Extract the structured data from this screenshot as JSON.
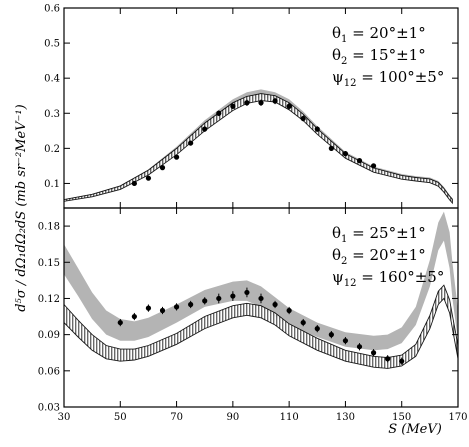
{
  "chart_data": [
    {
      "type": "line",
      "panel": "upper",
      "xlabel": "S (MeV)",
      "ylabel": "d⁵σ / dΩ₁dΩ₂dS  (mb sr⁻²MeV⁻¹)",
      "xlim": [
        30,
        170
      ],
      "ylim": [
        0.03,
        0.6
      ],
      "yticks": [
        0.1,
        0.2,
        0.3,
        0.4,
        0.5,
        0.6
      ],
      "ytick_labels": [
        "0.1",
        "0.2",
        "0.3",
        "0.4",
        "0.5",
        "0.6"
      ],
      "annotation": [
        {
          "sym": "θ",
          "sub": "1",
          "text": " = 20°±1°"
        },
        {
          "sym": "θ",
          "sub": "2",
          "text": " = 15°±1°"
        },
        {
          "sym": "ψ",
          "sub": "12",
          "text": " = 100°±5°"
        }
      ],
      "series": [
        {
          "style": "shaded band (grey)",
          "color": "#b4b4b4",
          "x": [
            30,
            40,
            50,
            60,
            70,
            80,
            90,
            95,
            100,
            105,
            110,
            115,
            120,
            130,
            140,
            150,
            155,
            160,
            163,
            165,
            167,
            168
          ],
          "lower": [
            0.05,
            0.063,
            0.084,
            0.125,
            0.185,
            0.255,
            0.315,
            0.335,
            0.345,
            0.34,
            0.318,
            0.285,
            0.245,
            0.175,
            0.135,
            0.115,
            0.11,
            0.105,
            0.095,
            0.078,
            0.055,
            0.045
          ],
          "upper": [
            0.055,
            0.07,
            0.094,
            0.14,
            0.205,
            0.28,
            0.34,
            0.36,
            0.368,
            0.36,
            0.34,
            0.305,
            0.263,
            0.19,
            0.148,
            0.127,
            0.121,
            0.117,
            0.107,
            0.09,
            0.067,
            0.057
          ]
        },
        {
          "style": "hatched band",
          "color": "#000000",
          "x": [
            30,
            40,
            50,
            60,
            70,
            80,
            90,
            95,
            100,
            105,
            110,
            115,
            120,
            130,
            140,
            150,
            155,
            160,
            163,
            165,
            167,
            168
          ],
          "lower": [
            0.049,
            0.062,
            0.083,
            0.124,
            0.182,
            0.25,
            0.308,
            0.328,
            0.336,
            0.332,
            0.31,
            0.279,
            0.24,
            0.172,
            0.132,
            0.112,
            0.107,
            0.102,
            0.092,
            0.075,
            0.053,
            0.044
          ],
          "upper": [
            0.054,
            0.069,
            0.093,
            0.138,
            0.2,
            0.272,
            0.33,
            0.348,
            0.356,
            0.35,
            0.33,
            0.297,
            0.256,
            0.185,
            0.144,
            0.123,
            0.117,
            0.113,
            0.103,
            0.086,
            0.064,
            0.055
          ]
        },
        {
          "style": "data points",
          "color": "#000000",
          "x": [
            55,
            60,
            65,
            70,
            75,
            80,
            85,
            90,
            95,
            100,
            105,
            110,
            115,
            120,
            125,
            130,
            135,
            140
          ],
          "y": [
            0.1,
            0.115,
            0.145,
            0.175,
            0.215,
            0.255,
            0.3,
            0.32,
            0.33,
            0.33,
            0.335,
            0.32,
            0.285,
            0.255,
            0.2,
            0.185,
            0.165,
            0.15
          ],
          "yerr": [
            0.005,
            0.005,
            0.006,
            0.006,
            0.007,
            0.008,
            0.008,
            0.008,
            0.009,
            0.009,
            0.009,
            0.009,
            0.008,
            0.008,
            0.007,
            0.007,
            0.006,
            0.006
          ]
        }
      ]
    },
    {
      "type": "line",
      "panel": "lower",
      "xlabel": "S (MeV)",
      "xlim": [
        30,
        170
      ],
      "ylim": [
        0.03,
        0.195
      ],
      "xticks": [
        30,
        50,
        70,
        90,
        110,
        130,
        150,
        170
      ],
      "xtick_labels": [
        "30",
        "50",
        "70",
        "90",
        "110",
        "130",
        "150",
        "170"
      ],
      "yticks": [
        0.03,
        0.06,
        0.09,
        0.12,
        0.15,
        0.18
      ],
      "ytick_labels": [
        "0.03",
        "0.06",
        "0.09",
        "0.12",
        "0.15",
        "0.18"
      ],
      "annotation": [
        {
          "sym": "θ",
          "sub": "1",
          "text": " = 25°±1°"
        },
        {
          "sym": "θ",
          "sub": "2",
          "text": " = 20°±1°"
        },
        {
          "sym": "ψ",
          "sub": "12",
          "text": " = 160°±5°"
        }
      ],
      "series": [
        {
          "style": "shaded band (grey)",
          "color": "#b4b4b4",
          "x": [
            30,
            35,
            40,
            45,
            50,
            55,
            60,
            70,
            80,
            90,
            95,
            100,
            105,
            110,
            120,
            130,
            140,
            145,
            150,
            155,
            160,
            163,
            165,
            167,
            168,
            170
          ],
          "lower": [
            0.14,
            0.122,
            0.103,
            0.09,
            0.085,
            0.085,
            0.088,
            0.1,
            0.113,
            0.118,
            0.118,
            0.113,
            0.105,
            0.098,
            0.088,
            0.08,
            0.077,
            0.078,
            0.083,
            0.098,
            0.13,
            0.16,
            0.168,
            0.145,
            0.12,
            0.085
          ],
          "upper": [
            0.165,
            0.145,
            0.125,
            0.11,
            0.103,
            0.101,
            0.104,
            0.115,
            0.127,
            0.134,
            0.135,
            0.13,
            0.121,
            0.112,
            0.1,
            0.092,
            0.089,
            0.09,
            0.096,
            0.113,
            0.152,
            0.183,
            0.192,
            0.175,
            0.15,
            0.11
          ]
        },
        {
          "style": "hatched band",
          "color": "#000000",
          "x": [
            30,
            35,
            40,
            45,
            50,
            55,
            60,
            70,
            80,
            90,
            95,
            100,
            105,
            110,
            120,
            130,
            140,
            145,
            150,
            155,
            160,
            163,
            165,
            167,
            168,
            170
          ],
          "lower": [
            0.1,
            0.088,
            0.077,
            0.07,
            0.068,
            0.069,
            0.072,
            0.082,
            0.095,
            0.104,
            0.106,
            0.104,
            0.098,
            0.089,
            0.077,
            0.068,
            0.063,
            0.062,
            0.064,
            0.072,
            0.095,
            0.115,
            0.12,
            0.108,
            0.095,
            0.07
          ],
          "upper": [
            0.115,
            0.102,
            0.09,
            0.081,
            0.078,
            0.078,
            0.081,
            0.091,
            0.105,
            0.114,
            0.116,
            0.114,
            0.108,
            0.099,
            0.087,
            0.077,
            0.072,
            0.071,
            0.073,
            0.082,
            0.106,
            0.126,
            0.131,
            0.119,
            0.106,
            0.081
          ]
        },
        {
          "style": "data points",
          "color": "#000000",
          "x": [
            50,
            55,
            60,
            65,
            70,
            75,
            80,
            85,
            90,
            95,
            100,
            105,
            110,
            115,
            120,
            125,
            130,
            135,
            140,
            145,
            150
          ],
          "y": [
            0.1,
            0.105,
            0.112,
            0.11,
            0.113,
            0.115,
            0.118,
            0.12,
            0.122,
            0.125,
            0.12,
            0.115,
            0.11,
            0.1,
            0.095,
            0.09,
            0.085,
            0.08,
            0.075,
            0.07,
            0.068
          ],
          "yerr": [
            0.003,
            0.003,
            0.003,
            0.003,
            0.003,
            0.003,
            0.003,
            0.004,
            0.004,
            0.004,
            0.004,
            0.003,
            0.003,
            0.003,
            0.003,
            0.003,
            0.003,
            0.003,
            0.003,
            0.003,
            0.003
          ]
        }
      ]
    }
  ]
}
